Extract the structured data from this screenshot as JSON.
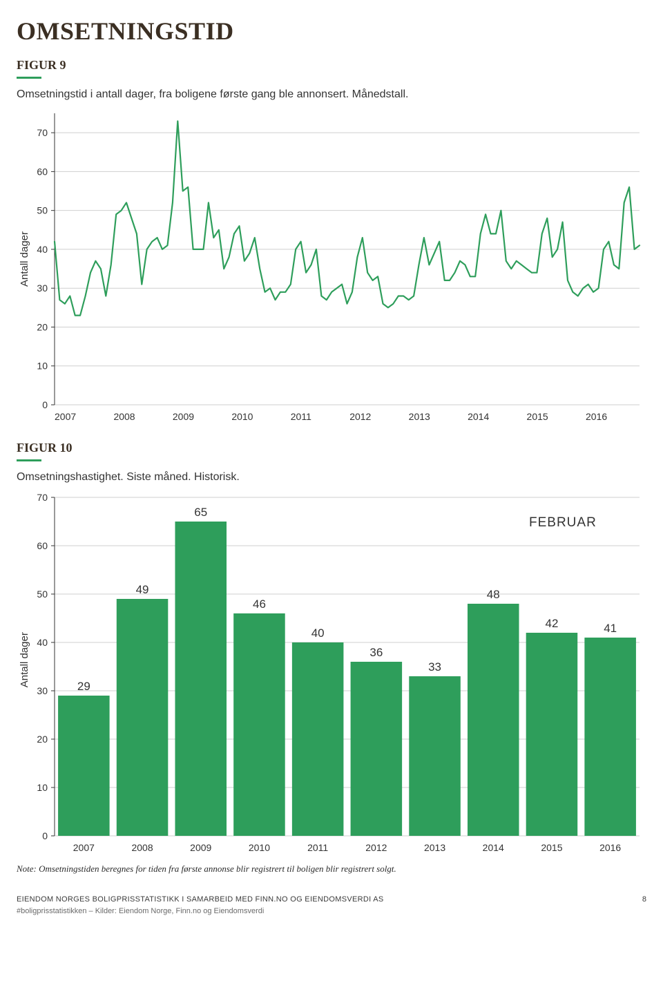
{
  "page": {
    "title": "OMSETNINGSTID",
    "note": "Note: Omsetningstiden beregnes for tiden fra første annonse blir registrert til boligen blir registrert solgt.",
    "footer_main": "EIENDOM NORGES BOLIGPRISSTATISTIKK I SAMARBEID MED FINN.NO OG EIENDOMSVERDI AS",
    "footer_sub": "#boligprisstatistikken  –  Kilder: Eiendom Norge, Finn.no og Eiendomsverdi",
    "page_number": "8"
  },
  "figure9": {
    "label": "FIGUR 9",
    "caption": "Omsetningstid i antall dager, fra boligene første gang ble annonsert. Månedstall.",
    "y_label": "Antall dager",
    "type": "line",
    "ylim": [
      0,
      75
    ],
    "yticks": [
      0,
      10,
      20,
      30,
      40,
      50,
      60,
      70
    ],
    "xticks": [
      "2007",
      "2008",
      "2009",
      "2010",
      "2011",
      "2012",
      "2013",
      "2014",
      "2015",
      "2016"
    ],
    "line_color": "#2e9e5b",
    "line_width": 2.2,
    "grid_color": "#cfcfcf",
    "axis_color": "#333333",
    "background_color": "#ffffff",
    "series": [
      42,
      27,
      26,
      28,
      23,
      23,
      28,
      34,
      37,
      35,
      28,
      36,
      49,
      50,
      52,
      48,
      44,
      31,
      40,
      42,
      43,
      40,
      41,
      52,
      73,
      55,
      56,
      40,
      40,
      40,
      52,
      43,
      45,
      35,
      38,
      44,
      46,
      37,
      39,
      43,
      35,
      29,
      30,
      27,
      29,
      29,
      31,
      40,
      42,
      34,
      36,
      40,
      28,
      27,
      29,
      30,
      31,
      26,
      29,
      38,
      43,
      34,
      32,
      33,
      26,
      25,
      26,
      28,
      28,
      27,
      28,
      36,
      43,
      36,
      39,
      42,
      32,
      32,
      34,
      37,
      36,
      33,
      33,
      44,
      49,
      44,
      44,
      50,
      37,
      35,
      37,
      36,
      35,
      34,
      34,
      44,
      48,
      38,
      40,
      47,
      32,
      29,
      28,
      30,
      31,
      29,
      30,
      40,
      42,
      36,
      35,
      52,
      56,
      40,
      41
    ]
  },
  "figure10": {
    "label": "FIGUR 10",
    "caption": "Omsetningshastighet. Siste måned. Historisk.",
    "y_label": "Antall dager",
    "month_label": "FEBRUAR",
    "type": "bar",
    "ylim": [
      0,
      70
    ],
    "yticks": [
      0,
      10,
      20,
      30,
      40,
      50,
      60,
      70
    ],
    "categories": [
      "2007",
      "2008",
      "2009",
      "2010",
      "2011",
      "2012",
      "2013",
      "2014",
      "2015",
      "2016"
    ],
    "values": [
      29,
      49,
      65,
      46,
      40,
      36,
      33,
      48,
      42,
      41
    ],
    "bar_color": "#2e9e5b",
    "grid_color": "#cfcfcf",
    "axis_color": "#333333",
    "background_color": "#ffffff",
    "bar_width_ratio": 0.88
  }
}
